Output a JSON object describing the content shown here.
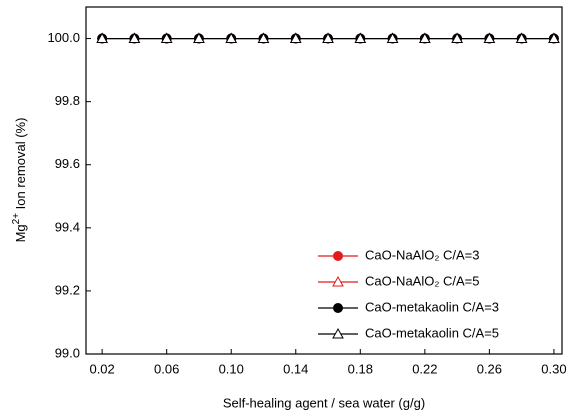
{
  "chart_data": {
    "type": "line",
    "xlabel": "Self-healing agent / sea water (g/g)",
    "ylabel": {
      "base": "Mg",
      "sup": "2+",
      "rest": " Ion removal (%)"
    },
    "x": [
      0.02,
      0.04,
      0.06,
      0.08,
      0.1,
      0.12,
      0.14,
      0.16,
      0.18,
      0.2,
      0.22,
      0.24,
      0.26,
      0.28,
      0.3
    ],
    "series": [
      {
        "name": "CaO-NaAlO₂ C/A=3",
        "color": "#e31a1c",
        "marker": "circle",
        "filled": true,
        "values": [
          100,
          100,
          100,
          100,
          100,
          100,
          100,
          100,
          100,
          100,
          100,
          100,
          100,
          100,
          100
        ]
      },
      {
        "name": "CaO-NaAlO₂ C/A=5",
        "color": "#e31a1c",
        "marker": "triangle",
        "filled": false,
        "values": [
          100,
          100,
          100,
          100,
          100,
          100,
          100,
          100,
          100,
          100,
          100,
          100,
          100,
          100,
          100
        ]
      },
      {
        "name": "CaO-metakaolin C/A=3",
        "color": "#000000",
        "marker": "circle",
        "filled": true,
        "values": [
          100,
          100,
          100,
          100,
          100,
          100,
          100,
          100,
          100,
          100,
          100,
          100,
          100,
          100,
          100
        ]
      },
      {
        "name": "CaO-metakaolin C/A=5",
        "color": "#000000",
        "marker": "triangle",
        "filled": false,
        "values": [
          100,
          100,
          100,
          100,
          100,
          100,
          100,
          100,
          100,
          100,
          100,
          100,
          100,
          100,
          100
        ]
      }
    ],
    "xlim": [
      0.01,
      0.305
    ],
    "ylim": [
      99.0,
      100.1
    ],
    "xticks": [
      0.02,
      0.06,
      {
        "value": 0.1,
        "label": "0.10"
      },
      0.14,
      0.18,
      0.22,
      0.26,
      {
        "value": 0.3,
        "label": "0.30"
      }
    ],
    "yticks": [
      {
        "value": 99.0,
        "label": "99.0"
      },
      99.2,
      99.4,
      99.6,
      99.8,
      {
        "value": 100.0,
        "label": "100.0"
      }
    ],
    "grid": false,
    "legend": "lower right"
  }
}
